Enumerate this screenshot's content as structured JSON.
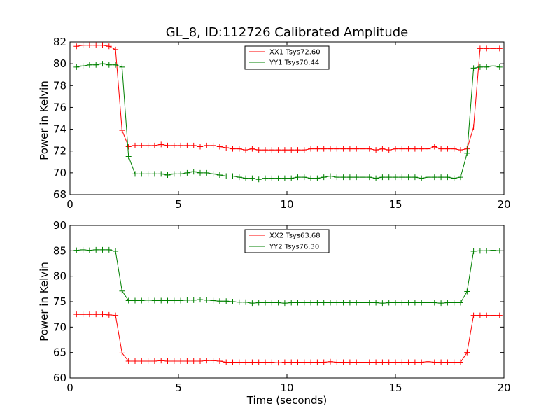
{
  "chart_data": [
    {
      "type": "line",
      "title": "GL_8, ID:112726 Calibrated Amplitude",
      "xlabel": "",
      "ylabel": "Power in Kelvin",
      "xlim": [
        0,
        20
      ],
      "ylim": [
        68,
        82
      ],
      "xticks": [
        "0",
        "5",
        "10",
        "15",
        "20"
      ],
      "yticks": [
        "68",
        "70",
        "72",
        "74",
        "76",
        "78",
        "80",
        "82"
      ],
      "legend_position": "top-center",
      "grid": false,
      "x": [
        0.3,
        0.6,
        0.9,
        1.2,
        1.5,
        1.8,
        2.1,
        2.4,
        2.7,
        3.0,
        3.3,
        3.6,
        3.9,
        4.2,
        4.5,
        4.8,
        5.1,
        5.4,
        5.7,
        6.0,
        6.3,
        6.6,
        6.9,
        7.2,
        7.5,
        7.8,
        8.1,
        8.4,
        8.7,
        9.0,
        9.3,
        9.6,
        9.9,
        10.2,
        10.5,
        10.8,
        11.1,
        11.4,
        11.7,
        12.0,
        12.3,
        12.6,
        12.9,
        13.2,
        13.5,
        13.8,
        14.1,
        14.4,
        14.7,
        15.0,
        15.3,
        15.6,
        15.9,
        16.2,
        16.5,
        16.8,
        17.1,
        17.4,
        17.7,
        18.0,
        18.3,
        18.6,
        18.9,
        19.2,
        19.5,
        19.8
      ],
      "series": [
        {
          "name": "XX1 Tsys72.60",
          "color": "#ff0000",
          "values": [
            81.6,
            81.7,
            81.7,
            81.7,
            81.7,
            81.6,
            81.3,
            73.9,
            72.4,
            72.5,
            72.5,
            72.5,
            72.5,
            72.6,
            72.5,
            72.5,
            72.5,
            72.5,
            72.5,
            72.4,
            72.5,
            72.5,
            72.4,
            72.3,
            72.2,
            72.2,
            72.1,
            72.2,
            72.1,
            72.1,
            72.1,
            72.1,
            72.1,
            72.1,
            72.1,
            72.1,
            72.2,
            72.2,
            72.2,
            72.2,
            72.2,
            72.2,
            72.2,
            72.2,
            72.2,
            72.2,
            72.1,
            72.2,
            72.1,
            72.2,
            72.2,
            72.2,
            72.2,
            72.2,
            72.2,
            72.4,
            72.2,
            72.2,
            72.2,
            72.1,
            72.2,
            74.2,
            81.4,
            81.4,
            81.4,
            81.4
          ]
        },
        {
          "name": "YY1 Tsys70.44",
          "color": "#008000",
          "values": [
            79.7,
            79.8,
            79.9,
            79.9,
            80.0,
            79.9,
            79.9,
            79.7,
            71.5,
            69.9,
            69.9,
            69.9,
            69.9,
            69.9,
            69.8,
            69.9,
            69.9,
            70.0,
            70.1,
            70.0,
            70.0,
            69.9,
            69.8,
            69.7,
            69.7,
            69.6,
            69.5,
            69.5,
            69.4,
            69.5,
            69.5,
            69.5,
            69.5,
            69.5,
            69.6,
            69.6,
            69.5,
            69.5,
            69.6,
            69.7,
            69.6,
            69.6,
            69.6,
            69.6,
            69.6,
            69.6,
            69.5,
            69.6,
            69.6,
            69.6,
            69.6,
            69.6,
            69.6,
            69.5,
            69.6,
            69.6,
            69.6,
            69.6,
            69.5,
            69.6,
            71.8,
            79.6,
            79.7,
            79.7,
            79.8,
            79.7
          ]
        }
      ]
    },
    {
      "type": "line",
      "title": "",
      "xlabel": "Time (seconds)",
      "ylabel": "Power in Kelvin",
      "xlim": [
        0,
        20
      ],
      "ylim": [
        60,
        90
      ],
      "xticks": [
        "0",
        "5",
        "10",
        "15",
        "20"
      ],
      "yticks": [
        "60",
        "65",
        "70",
        "75",
        "80",
        "85",
        "90"
      ],
      "legend_position": "top-center",
      "grid": false,
      "x": [
        0.3,
        0.6,
        0.9,
        1.2,
        1.5,
        1.8,
        2.1,
        2.4,
        2.7,
        3.0,
        3.3,
        3.6,
        3.9,
        4.2,
        4.5,
        4.8,
        5.1,
        5.4,
        5.7,
        6.0,
        6.3,
        6.6,
        6.9,
        7.2,
        7.5,
        7.8,
        8.1,
        8.4,
        8.7,
        9.0,
        9.3,
        9.6,
        9.9,
        10.2,
        10.5,
        10.8,
        11.1,
        11.4,
        11.7,
        12.0,
        12.3,
        12.6,
        12.9,
        13.2,
        13.5,
        13.8,
        14.1,
        14.4,
        14.7,
        15.0,
        15.3,
        15.6,
        15.9,
        16.2,
        16.5,
        16.8,
        17.1,
        17.4,
        17.7,
        18.0,
        18.3,
        18.6,
        18.9,
        19.2,
        19.5,
        19.8
      ],
      "series": [
        {
          "name": "XX2 Tsys63.68",
          "color": "#ff0000",
          "values": [
            72.5,
            72.5,
            72.5,
            72.5,
            72.5,
            72.4,
            72.3,
            64.9,
            63.3,
            63.3,
            63.3,
            63.3,
            63.3,
            63.4,
            63.3,
            63.3,
            63.3,
            63.3,
            63.3,
            63.3,
            63.4,
            63.4,
            63.3,
            63.1,
            63.1,
            63.1,
            63.1,
            63.1,
            63.1,
            63.1,
            63.1,
            63.0,
            63.1,
            63.1,
            63.1,
            63.1,
            63.1,
            63.1,
            63.1,
            63.2,
            63.1,
            63.1,
            63.1,
            63.1,
            63.1,
            63.1,
            63.1,
            63.1,
            63.1,
            63.1,
            63.1,
            63.1,
            63.1,
            63.1,
            63.2,
            63.1,
            63.1,
            63.1,
            63.1,
            63.1,
            65.0,
            72.3,
            72.3,
            72.3,
            72.3,
            72.3
          ]
        },
        {
          "name": "YY2 Tsys76.30",
          "color": "#008000",
          "values": [
            85.1,
            85.2,
            85.1,
            85.2,
            85.2,
            85.2,
            84.9,
            77.1,
            75.2,
            75.2,
            75.2,
            75.3,
            75.2,
            75.2,
            75.2,
            75.2,
            75.2,
            75.3,
            75.3,
            75.4,
            75.3,
            75.2,
            75.1,
            75.1,
            75.0,
            74.9,
            74.9,
            74.7,
            74.8,
            74.8,
            74.8,
            74.8,
            74.7,
            74.8,
            74.8,
            74.8,
            74.8,
            74.8,
            74.8,
            74.8,
            74.8,
            74.8,
            74.8,
            74.8,
            74.8,
            74.8,
            74.8,
            74.7,
            74.8,
            74.8,
            74.8,
            74.8,
            74.8,
            74.8,
            74.8,
            74.8,
            74.7,
            74.8,
            74.8,
            74.8,
            77.0,
            84.9,
            85.0,
            85.0,
            85.1,
            85.0
          ]
        }
      ]
    }
  ]
}
